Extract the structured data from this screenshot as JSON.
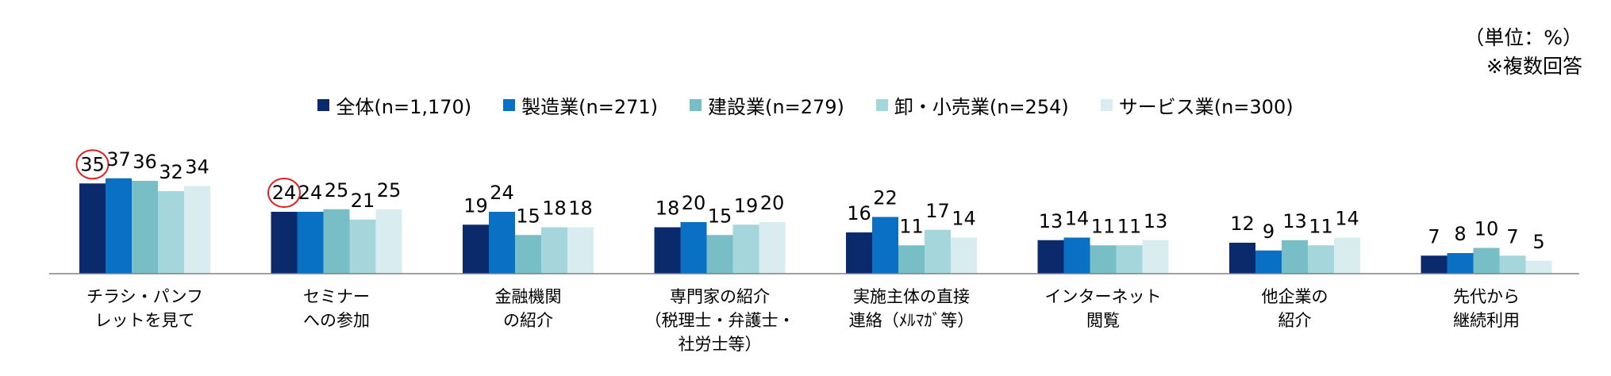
{
  "notes": {
    "unit": "（単位：%）",
    "multiple": "※複数回答"
  },
  "chart_data": {
    "type": "bar",
    "categories": [
      "チラシ・パンフ\nレットを見て",
      "セミナー\nへの参加",
      "金融機関\nの紹介",
      "専門家の紹介\n（税理士・弁護士・\n社労士等）",
      "実施主体の直接\n連絡（ﾒﾙﾏｶﾞ等）",
      "インターネット\n閲覧",
      "他企業の\n紹介",
      "先代から\n継続利用"
    ],
    "series": [
      {
        "name": "全体(n=1,170)",
        "color": "#0b2a6b",
        "values": [
          35,
          24,
          19,
          18,
          16,
          13,
          12,
          7
        ]
      },
      {
        "name": "製造業(n=271)",
        "color": "#0a70c4",
        "values": [
          37,
          24,
          24,
          20,
          22,
          14,
          9,
          8
        ]
      },
      {
        "name": "建設業(n=279)",
        "color": "#78bec6",
        "values": [
          36,
          25,
          15,
          15,
          11,
          11,
          13,
          10
        ]
      },
      {
        "name": "卸・小売業(n=254)",
        "color": "#a5d6dc",
        "values": [
          32,
          21,
          18,
          19,
          17,
          11,
          11,
          7
        ]
      },
      {
        "name": "サービス業(n=300)",
        "color": "#d9edf1",
        "values": [
          34,
          25,
          18,
          20,
          14,
          13,
          14,
          5
        ]
      }
    ],
    "ylim": [
      0,
      40
    ],
    "highlighted": [
      {
        "category": "チラシ・パンフ\nレットを見て",
        "series": "全体(n=1,170)"
      },
      {
        "category": "セミナー\nへの参加",
        "series": "全体(n=1,170)"
      }
    ],
    "highlight_color": "#e02020",
    "legend_position": "top"
  }
}
